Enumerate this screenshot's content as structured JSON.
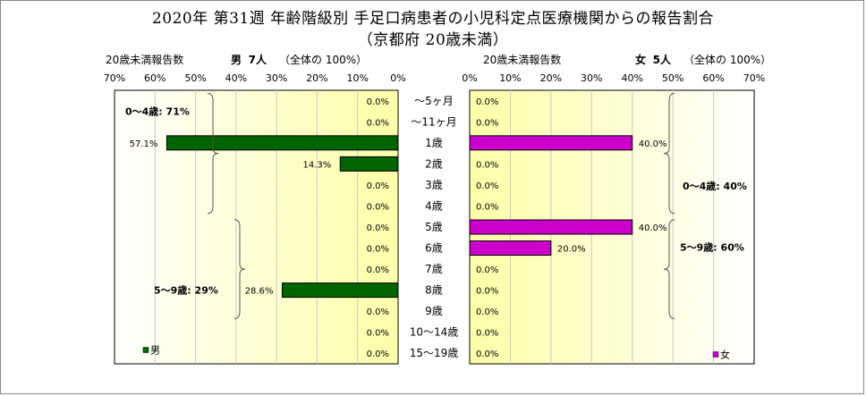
{
  "title_line1": "2020年 第31週 年齢階級別 手足口病患者の小児科定点医療機関からの報告割合",
  "title_line2": "（京都府 20歳未満）",
  "left_header": {
    "label": "20歳未満報告数",
    "sex": "男",
    "count": "7人",
    "note": "（全体の 100%）"
  },
  "right_header": {
    "label": "20歳未満報告数",
    "sex": "女",
    "count": "5人",
    "note": "（全体の 100%）"
  },
  "chart_data": {
    "type": "bar",
    "orientation": "horizontal",
    "categories": [
      "～5ヶ月",
      "～11ヶ月",
      "1歳",
      "2歳",
      "3歳",
      "4歳",
      "5歳",
      "6歳",
      "7歳",
      "8歳",
      "9歳",
      "10～14歳",
      "15～19歳"
    ],
    "series": [
      {
        "name": "男",
        "color": "#006400",
        "values": [
          0,
          0,
          57.1,
          14.3,
          0,
          0,
          0,
          0,
          0,
          28.6,
          0,
          0,
          0
        ],
        "labels": [
          "0.0%",
          "0.0%",
          "57.1%",
          "14.3%",
          "0.0%",
          "0.0%",
          "0.0%",
          "0.0%",
          "0.0%",
          "28.6%",
          "0.0%",
          "0.0%",
          "0.0%"
        ]
      },
      {
        "name": "女",
        "color": "#CC00CC",
        "values": [
          0,
          0,
          40,
          0,
          0,
          0,
          40,
          20,
          0,
          0,
          0,
          0,
          0
        ],
        "labels": [
          "0.0%",
          "0.0%",
          "40.0%",
          "0.0%",
          "0.0%",
          "0.0%",
          "40.0%",
          "20.0%",
          "0.0%",
          "0.0%",
          "0.0%",
          "0.0%",
          "0.0%"
        ]
      }
    ],
    "xlim": [
      0,
      70
    ],
    "left_ticks": [
      "70%",
      "60%",
      "50%",
      "40%",
      "30%",
      "20%",
      "10%",
      "0%"
    ],
    "right_ticks": [
      "0%",
      "10%",
      "20%",
      "30%",
      "40%",
      "50%",
      "60%",
      "70%"
    ],
    "annotations": {
      "male_0_4": "0～4歳: 71%",
      "male_5_9": "5～9歳: 29%",
      "female_0_4": "0～4歳: 40%",
      "female_5_9": "5～9歳: 60%"
    },
    "legend_male": "男",
    "legend_female": "女"
  }
}
